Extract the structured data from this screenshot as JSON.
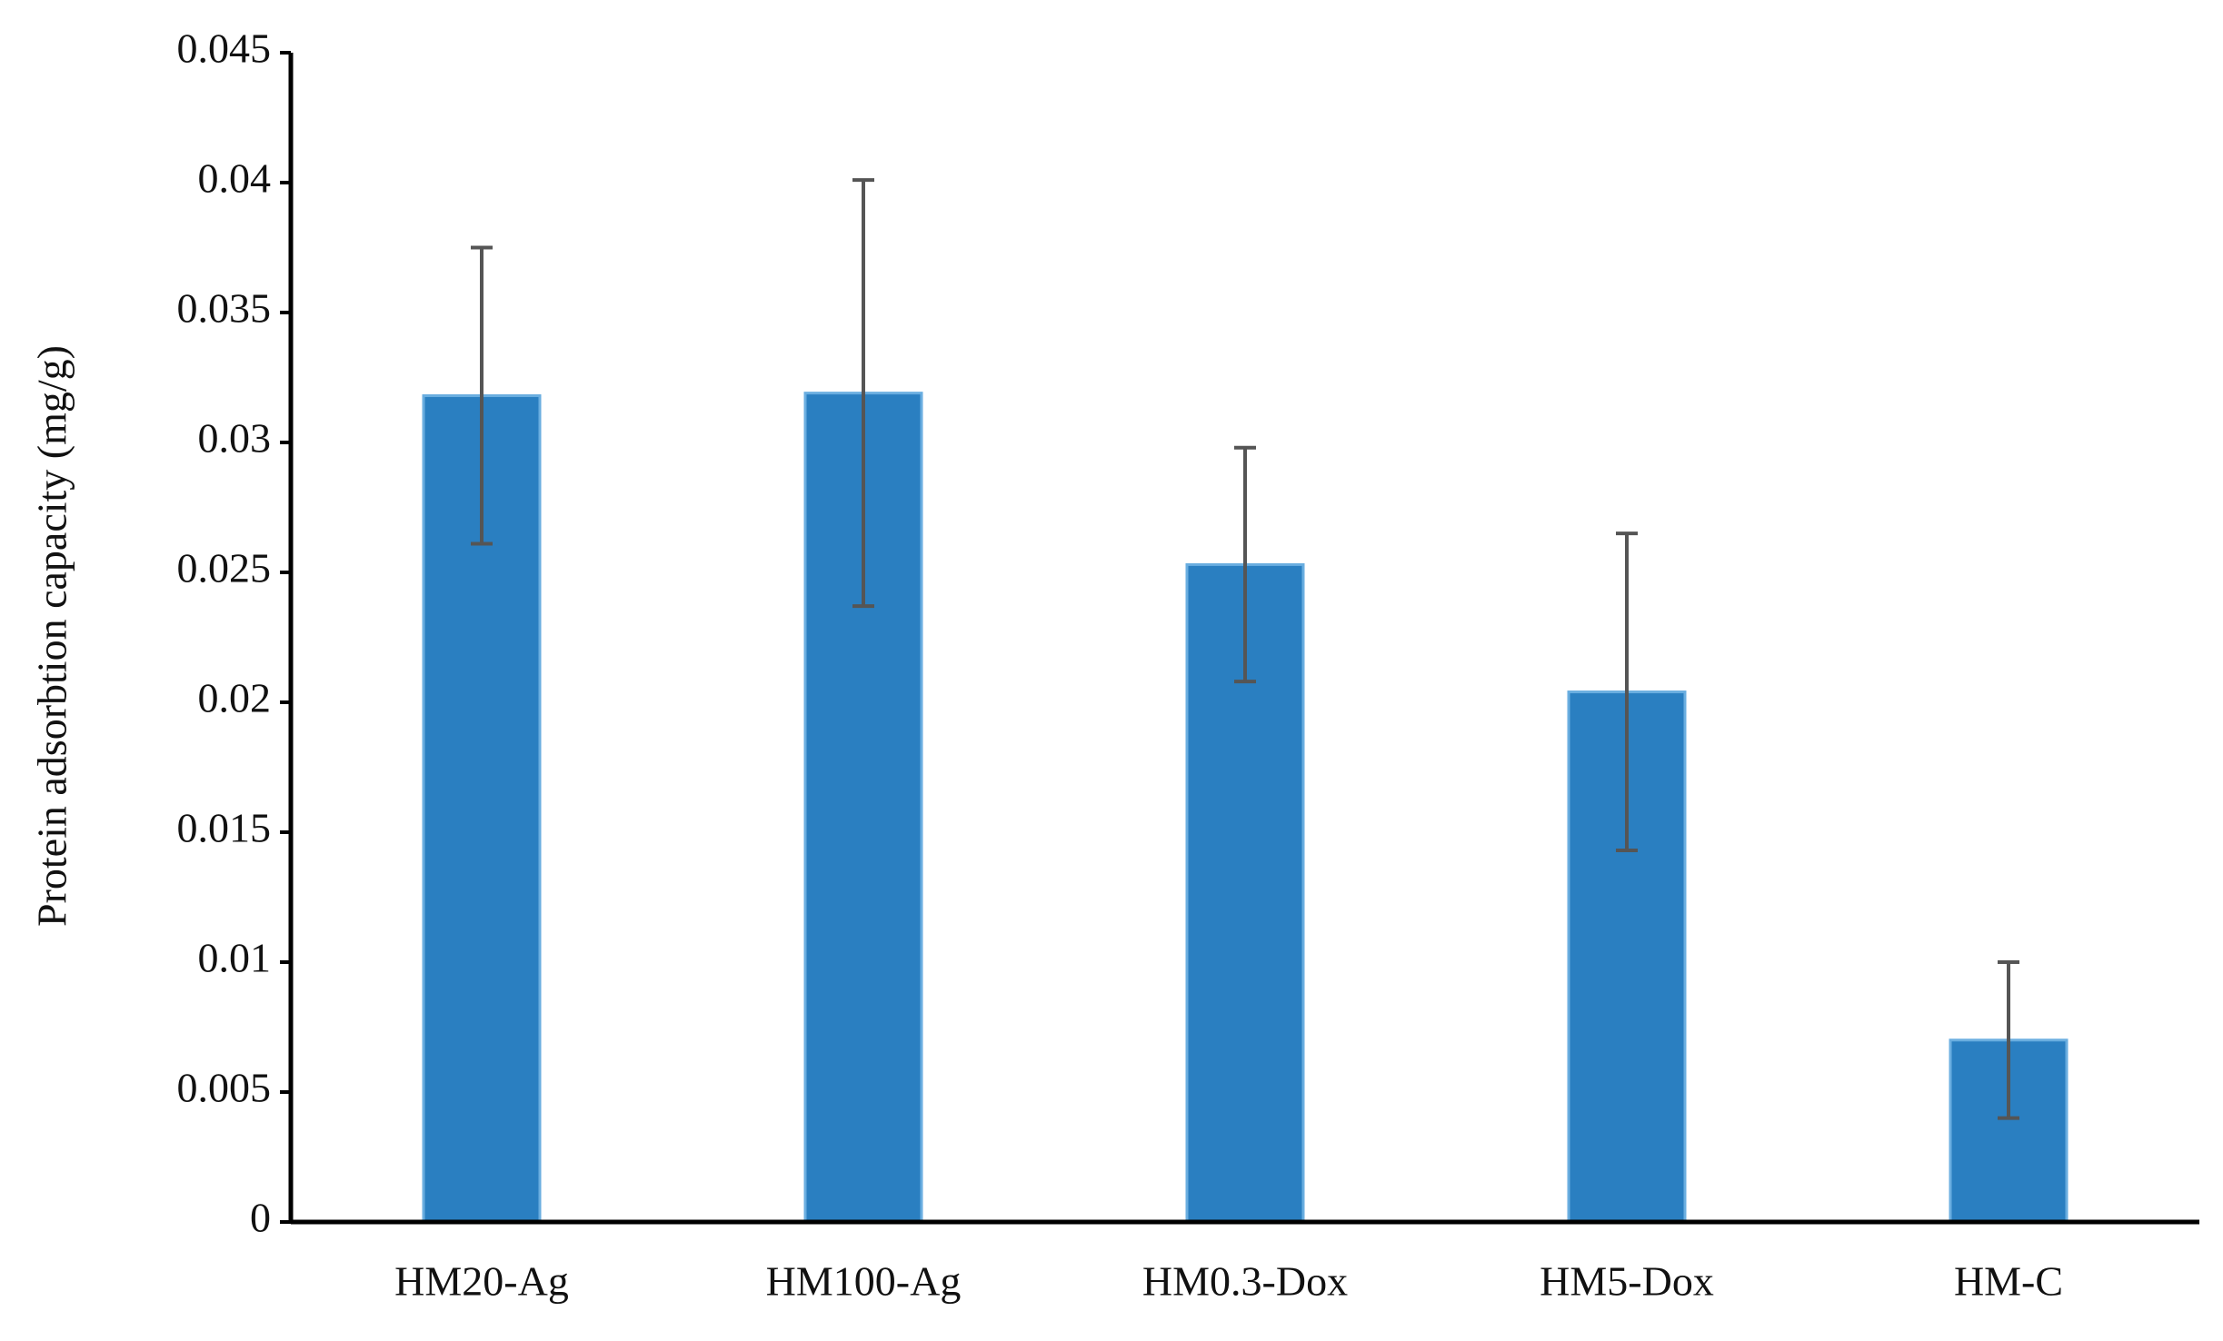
{
  "chart_data": {
    "type": "bar",
    "y_label": "Protein adsorbtion capacity (mg/g)",
    "categories": [
      "HM20-Ag",
      "HM100-Ag",
      "HM0.3-Dox",
      "HM5-Dox",
      "HM-C"
    ],
    "values": [
      0.0318,
      0.0319,
      0.0253,
      0.0204,
      0.007
    ],
    "errors": [
      0.0057,
      0.0082,
      0.0045,
      0.0061,
      0.003
    ],
    "color": "#2a7fc1",
    "ylim": [
      0,
      0.045
    ],
    "yticks": [
      0,
      0.005,
      0.01,
      0.015,
      0.02,
      0.025,
      0.03,
      0.035,
      0.04,
      0.045
    ],
    "grid": false
  }
}
